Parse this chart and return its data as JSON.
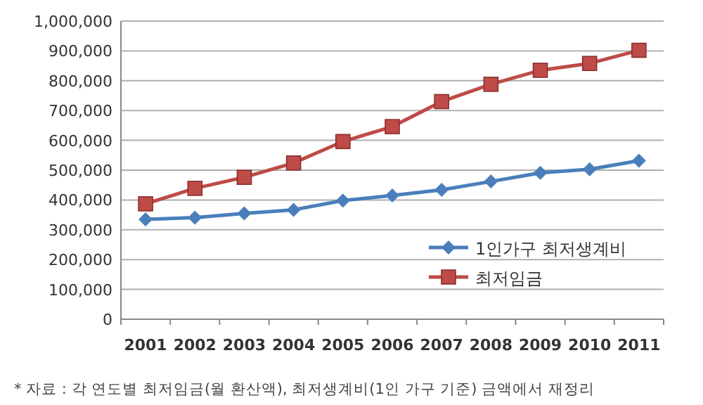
{
  "chart_data": {
    "type": "line",
    "categories": [
      "2001",
      "2002",
      "2003",
      "2004",
      "2005",
      "2006",
      "2007",
      "2008",
      "2009",
      "2010",
      "2011"
    ],
    "series": [
      {
        "name": "1인가구 최저생계비",
        "color": "#4a7ebb",
        "marker": "diamond",
        "values": [
          335000,
          341000,
          355000,
          367000,
          398000,
          415000,
          434000,
          462000,
          491000,
          503000,
          532000
        ]
      },
      {
        "name": "최저임금",
        "color": "#be4b48",
        "marker": "square",
        "values": [
          387000,
          439000,
          476000,
          524000,
          596000,
          646000,
          730000,
          788000,
          835000,
          858000,
          902000
        ]
      }
    ],
    "ylim": [
      0,
      1000000
    ],
    "yticks": [
      {
        "value": 0,
        "label": "0"
      },
      {
        "value": 100000,
        "label": "100,000"
      },
      {
        "value": 200000,
        "label": "200,000"
      },
      {
        "value": 300000,
        "label": "300,000"
      },
      {
        "value": 400000,
        "label": "400,000"
      },
      {
        "value": 500000,
        "label": "500,000"
      },
      {
        "value": 600000,
        "label": "600,000"
      },
      {
        "value": 700000,
        "label": "700,000"
      },
      {
        "value": 800000,
        "label": "800,000"
      },
      {
        "value": 900000,
        "label": "900,000"
      },
      {
        "value": 1000000,
        "label": "1,000,000"
      }
    ],
    "grid": "y",
    "legend": "bottom right",
    "annotations": [
      "* 자료 : 각 연도별 최저임금(월 환산액), 최저생계비(1인 가구 기준) 금액에서 재정리"
    ]
  }
}
